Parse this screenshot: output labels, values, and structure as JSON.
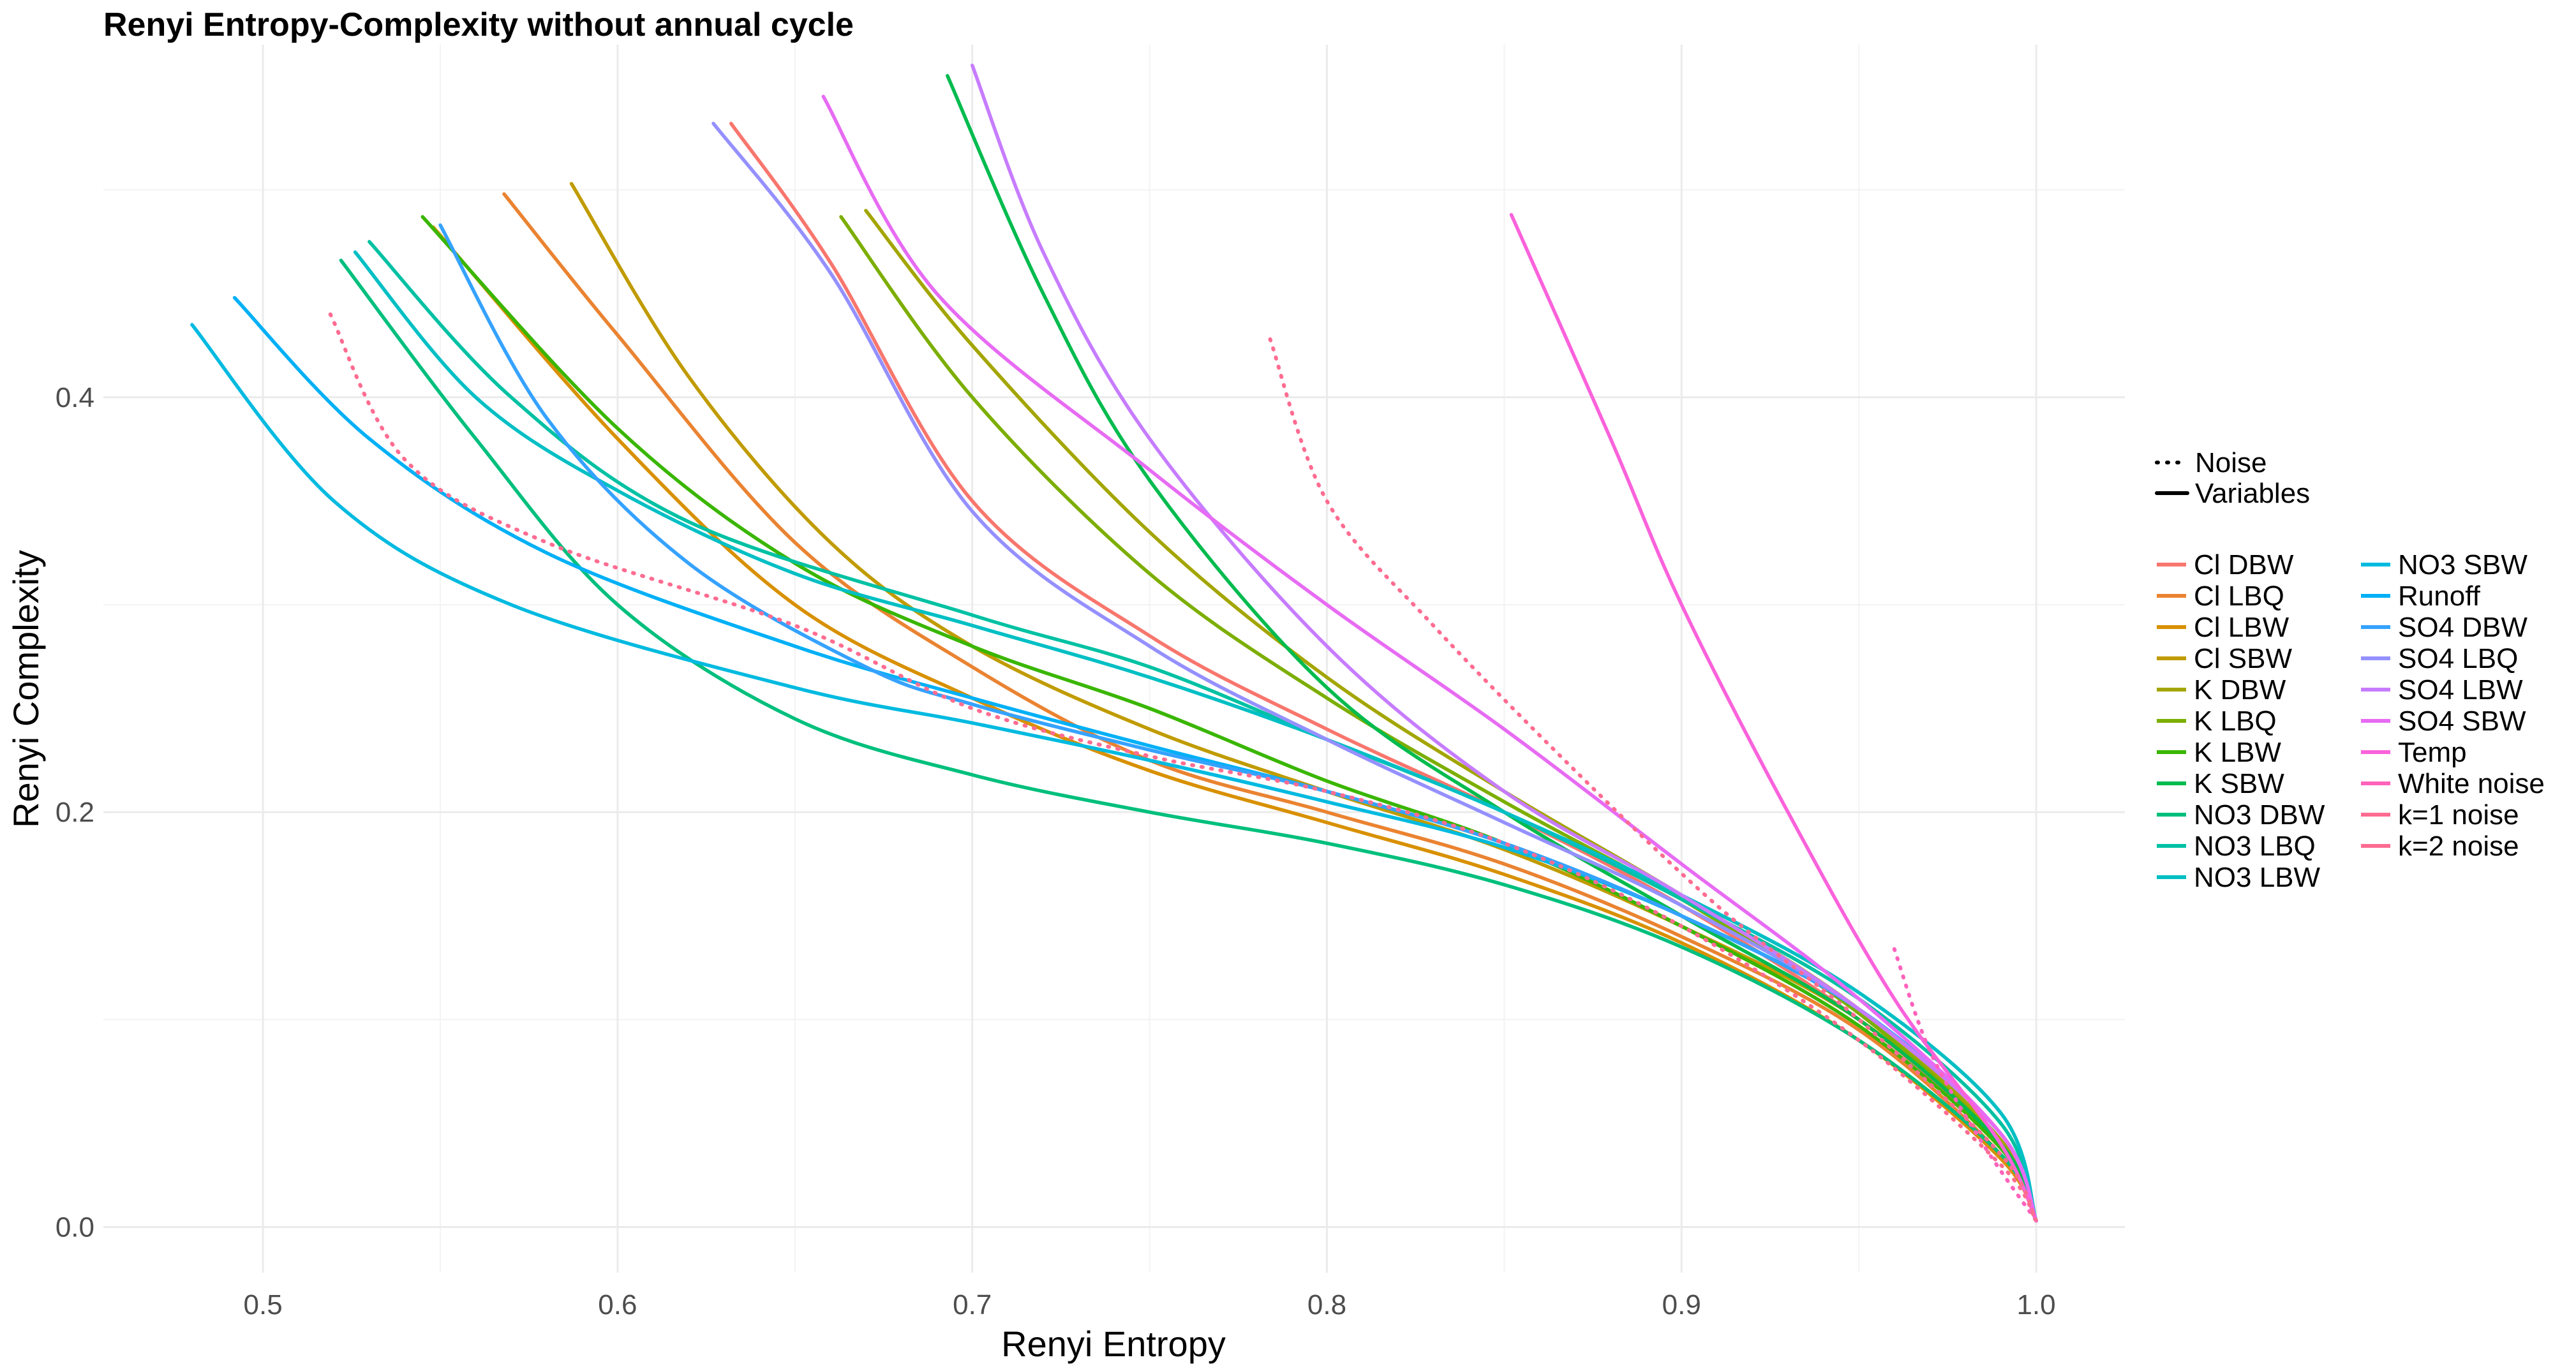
{
  "chart_data": {
    "type": "line",
    "title": "Renyi Entropy-Complexity without annual cycle",
    "xlabel": "Renyi Entropy",
    "ylabel": "Renyi Complexity",
    "xlim": [
      0.455,
      1.025
    ],
    "ylim": [
      -0.022,
      0.57
    ],
    "x_ticks": [
      0.5,
      0.6,
      0.7,
      0.8,
      0.9,
      1.0
    ],
    "x_tick_labels": [
      "0.5",
      "0.6",
      "0.7",
      "0.8",
      "0.9",
      "1.0"
    ],
    "y_ticks": [
      0.0,
      0.2,
      0.4
    ],
    "y_tick_labels": [
      "0.0",
      "0.2",
      "0.4"
    ],
    "grid": true,
    "legend_position": "right",
    "linetype_legend": [
      {
        "label": "Noise",
        "style": "dotted"
      },
      {
        "label": "Variables",
        "style": "solid"
      }
    ],
    "series": [
      {
        "name": "Cl DBW",
        "color": "#F8766D",
        "style": "solid",
        "points": [
          [
            0.632,
            0.532
          ],
          [
            0.66,
            0.465
          ],
          [
            0.7,
            0.35
          ],
          [
            0.75,
            0.285
          ],
          [
            0.8,
            0.24
          ],
          [
            0.85,
            0.2
          ],
          [
            0.9,
            0.155
          ],
          [
            0.95,
            0.1
          ],
          [
            0.99,
            0.04
          ],
          [
            1.0,
            0.003
          ]
        ]
      },
      {
        "name": "Cl LBQ",
        "color": "#EA8331",
        "style": "solid",
        "points": [
          [
            0.568,
            0.498
          ],
          [
            0.6,
            0.43
          ],
          [
            0.65,
            0.33
          ],
          [
            0.7,
            0.27
          ],
          [
            0.75,
            0.225
          ],
          [
            0.8,
            0.2
          ],
          [
            0.85,
            0.175
          ],
          [
            0.9,
            0.14
          ],
          [
            0.95,
            0.095
          ],
          [
            0.99,
            0.035
          ],
          [
            1.0,
            0.003
          ]
        ]
      },
      {
        "name": "Cl LBW",
        "color": "#D89000",
        "style": "solid",
        "points": [
          [
            0.548,
            0.482
          ],
          [
            0.6,
            0.38
          ],
          [
            0.65,
            0.3
          ],
          [
            0.7,
            0.255
          ],
          [
            0.75,
            0.22
          ],
          [
            0.8,
            0.195
          ],
          [
            0.85,
            0.17
          ],
          [
            0.9,
            0.137
          ],
          [
            0.95,
            0.09
          ],
          [
            0.99,
            0.033
          ],
          [
            1.0,
            0.003
          ]
        ]
      },
      {
        "name": "Cl SBW",
        "color": "#C09B00",
        "style": "solid",
        "points": [
          [
            0.587,
            0.503
          ],
          [
            0.62,
            0.41
          ],
          [
            0.66,
            0.33
          ],
          [
            0.7,
            0.28
          ],
          [
            0.75,
            0.24
          ],
          [
            0.8,
            0.21
          ],
          [
            0.85,
            0.182
          ],
          [
            0.9,
            0.145
          ],
          [
            0.95,
            0.1
          ],
          [
            0.99,
            0.04
          ],
          [
            1.0,
            0.003
          ]
        ]
      },
      {
        "name": "K DBW",
        "color": "#A3A500",
        "style": "solid",
        "points": [
          [
            0.67,
            0.49
          ],
          [
            0.7,
            0.425
          ],
          [
            0.75,
            0.335
          ],
          [
            0.8,
            0.265
          ],
          [
            0.85,
            0.21
          ],
          [
            0.9,
            0.16
          ],
          [
            0.95,
            0.105
          ],
          [
            0.99,
            0.042
          ],
          [
            1.0,
            0.003
          ]
        ]
      },
      {
        "name": "K LBQ",
        "color": "#7CAE00",
        "style": "solid",
        "points": [
          [
            0.663,
            0.487
          ],
          [
            0.7,
            0.4
          ],
          [
            0.75,
            0.315
          ],
          [
            0.8,
            0.255
          ],
          [
            0.85,
            0.205
          ],
          [
            0.9,
            0.158
          ],
          [
            0.95,
            0.103
          ],
          [
            0.99,
            0.04
          ],
          [
            1.0,
            0.003
          ]
        ]
      },
      {
        "name": "K LBW",
        "color": "#39B600",
        "style": "solid",
        "points": [
          [
            0.545,
            0.487
          ],
          [
            0.6,
            0.385
          ],
          [
            0.65,
            0.32
          ],
          [
            0.7,
            0.28
          ],
          [
            0.75,
            0.25
          ],
          [
            0.8,
            0.215
          ],
          [
            0.85,
            0.185
          ],
          [
            0.9,
            0.145
          ],
          [
            0.95,
            0.097
          ],
          [
            0.99,
            0.038
          ],
          [
            1.0,
            0.003
          ]
        ]
      },
      {
        "name": "K SBW",
        "color": "#00BB4E",
        "style": "solid",
        "points": [
          [
            0.693,
            0.555
          ],
          [
            0.72,
            0.45
          ],
          [
            0.75,
            0.36
          ],
          [
            0.8,
            0.26
          ],
          [
            0.85,
            0.2
          ],
          [
            0.9,
            0.15
          ],
          [
            0.95,
            0.1
          ],
          [
            0.99,
            0.04
          ],
          [
            1.0,
            0.003
          ]
        ]
      },
      {
        "name": "NO3 DBW",
        "color": "#00BF7D",
        "style": "solid",
        "points": [
          [
            0.522,
            0.466
          ],
          [
            0.56,
            0.38
          ],
          [
            0.6,
            0.3
          ],
          [
            0.65,
            0.245
          ],
          [
            0.7,
            0.218
          ],
          [
            0.75,
            0.2
          ],
          [
            0.8,
            0.185
          ],
          [
            0.85,
            0.165
          ],
          [
            0.9,
            0.135
          ],
          [
            0.95,
            0.09
          ],
          [
            0.99,
            0.035
          ],
          [
            1.0,
            0.003
          ]
        ]
      },
      {
        "name": "NO3 LBQ",
        "color": "#00C1A3",
        "style": "solid",
        "points": [
          [
            0.53,
            0.475
          ],
          [
            0.57,
            0.4
          ],
          [
            0.62,
            0.34
          ],
          [
            0.7,
            0.295
          ],
          [
            0.75,
            0.27
          ],
          [
            0.8,
            0.235
          ],
          [
            0.85,
            0.2
          ],
          [
            0.9,
            0.158
          ],
          [
            0.95,
            0.11
          ],
          [
            0.99,
            0.05
          ],
          [
            1.0,
            0.003
          ]
        ]
      },
      {
        "name": "NO3 LBW",
        "color": "#00BFC4",
        "style": "solid",
        "points": [
          [
            0.526,
            0.47
          ],
          [
            0.56,
            0.4
          ],
          [
            0.6,
            0.355
          ],
          [
            0.65,
            0.315
          ],
          [
            0.7,
            0.29
          ],
          [
            0.75,
            0.265
          ],
          [
            0.8,
            0.235
          ],
          [
            0.85,
            0.2
          ],
          [
            0.9,
            0.16
          ],
          [
            0.95,
            0.113
          ],
          [
            0.99,
            0.055
          ],
          [
            1.0,
            0.003
          ]
        ]
      },
      {
        "name": "NO3 SBW",
        "color": "#00BAE0",
        "style": "solid",
        "points": [
          [
            0.48,
            0.435
          ],
          [
            0.52,
            0.35
          ],
          [
            0.57,
            0.3
          ],
          [
            0.65,
            0.26
          ],
          [
            0.7,
            0.243
          ],
          [
            0.75,
            0.225
          ],
          [
            0.8,
            0.205
          ],
          [
            0.85,
            0.183
          ],
          [
            0.9,
            0.15
          ],
          [
            0.95,
            0.105
          ],
          [
            0.99,
            0.045
          ],
          [
            1.0,
            0.003
          ]
        ]
      },
      {
        "name": "Runoff",
        "color": "#00B0F6",
        "style": "solid",
        "points": [
          [
            0.492,
            0.448
          ],
          [
            0.53,
            0.38
          ],
          [
            0.58,
            0.325
          ],
          [
            0.65,
            0.28
          ],
          [
            0.7,
            0.255
          ],
          [
            0.75,
            0.232
          ],
          [
            0.8,
            0.21
          ],
          [
            0.85,
            0.185
          ],
          [
            0.9,
            0.15
          ],
          [
            0.95,
            0.105
          ],
          [
            0.99,
            0.045
          ],
          [
            1.0,
            0.003
          ]
        ]
      },
      {
        "name": "SO4 DBW",
        "color": "#35A2FF",
        "style": "solid",
        "points": [
          [
            0.55,
            0.483
          ],
          [
            0.58,
            0.39
          ],
          [
            0.62,
            0.32
          ],
          [
            0.67,
            0.27
          ],
          [
            0.7,
            0.252
          ],
          [
            0.75,
            0.23
          ],
          [
            0.8,
            0.21
          ],
          [
            0.85,
            0.185
          ],
          [
            0.9,
            0.15
          ],
          [
            0.95,
            0.105
          ],
          [
            0.99,
            0.045
          ],
          [
            1.0,
            0.003
          ]
        ]
      },
      {
        "name": "SO4 LBQ",
        "color": "#9590FF",
        "style": "solid",
        "points": [
          [
            0.627,
            0.532
          ],
          [
            0.66,
            0.46
          ],
          [
            0.7,
            0.345
          ],
          [
            0.75,
            0.28
          ],
          [
            0.8,
            0.235
          ],
          [
            0.85,
            0.195
          ],
          [
            0.9,
            0.155
          ],
          [
            0.95,
            0.105
          ],
          [
            0.99,
            0.045
          ],
          [
            1.0,
            0.003
          ]
        ]
      },
      {
        "name": "SO4 LBW",
        "color": "#C77CFF",
        "style": "solid",
        "points": [
          [
            0.7,
            0.56
          ],
          [
            0.72,
            0.47
          ],
          [
            0.75,
            0.38
          ],
          [
            0.8,
            0.28
          ],
          [
            0.85,
            0.21
          ],
          [
            0.9,
            0.16
          ],
          [
            0.95,
            0.105
          ],
          [
            0.99,
            0.045
          ],
          [
            1.0,
            0.003
          ]
        ]
      },
      {
        "name": "SO4 SBW",
        "color": "#E76BF3",
        "style": "solid",
        "points": [
          [
            0.658,
            0.545
          ],
          [
            0.69,
            0.45
          ],
          [
            0.75,
            0.365
          ],
          [
            0.8,
            0.3
          ],
          [
            0.85,
            0.24
          ],
          [
            0.9,
            0.175
          ],
          [
            0.95,
            0.11
          ],
          [
            0.99,
            0.045
          ],
          [
            1.0,
            0.003
          ]
        ]
      },
      {
        "name": "Temp",
        "color": "#FA62DB",
        "style": "solid",
        "points": [
          [
            0.852,
            0.488
          ],
          [
            0.88,
            0.38
          ],
          [
            0.9,
            0.3
          ],
          [
            0.93,
            0.2
          ],
          [
            0.96,
            0.11
          ],
          [
            0.99,
            0.04
          ],
          [
            1.0,
            0.003
          ]
        ]
      },
      {
        "name": "White noise",
        "color": "#FF62BC",
        "style": "dotted",
        "points": [
          [
            0.96,
            0.134
          ],
          [
            0.97,
            0.085
          ],
          [
            0.985,
            0.04
          ],
          [
            1.0,
            0.003
          ]
        ]
      },
      {
        "name": "k=1 noise",
        "color": "#FF6C91",
        "style": "dotted",
        "points": [
          [
            0.784,
            0.428
          ],
          [
            0.8,
            0.35
          ],
          [
            0.83,
            0.29
          ],
          [
            0.87,
            0.22
          ],
          [
            0.91,
            0.155
          ],
          [
            0.95,
            0.1
          ],
          [
            0.99,
            0.035
          ],
          [
            1.0,
            0.003
          ]
        ]
      },
      {
        "name": "k=2 noise",
        "color": "#FF6C91",
        "style": "dotted",
        "points": [
          [
            0.519,
            0.44
          ],
          [
            0.54,
            0.37
          ],
          [
            0.58,
            0.33
          ],
          [
            0.65,
            0.29
          ],
          [
            0.7,
            0.25
          ],
          [
            0.75,
            0.227
          ],
          [
            0.8,
            0.21
          ],
          [
            0.85,
            0.185
          ],
          [
            0.9,
            0.145
          ],
          [
            0.95,
            0.09
          ],
          [
            0.99,
            0.03
          ],
          [
            1.0,
            0.003
          ]
        ]
      }
    ]
  }
}
